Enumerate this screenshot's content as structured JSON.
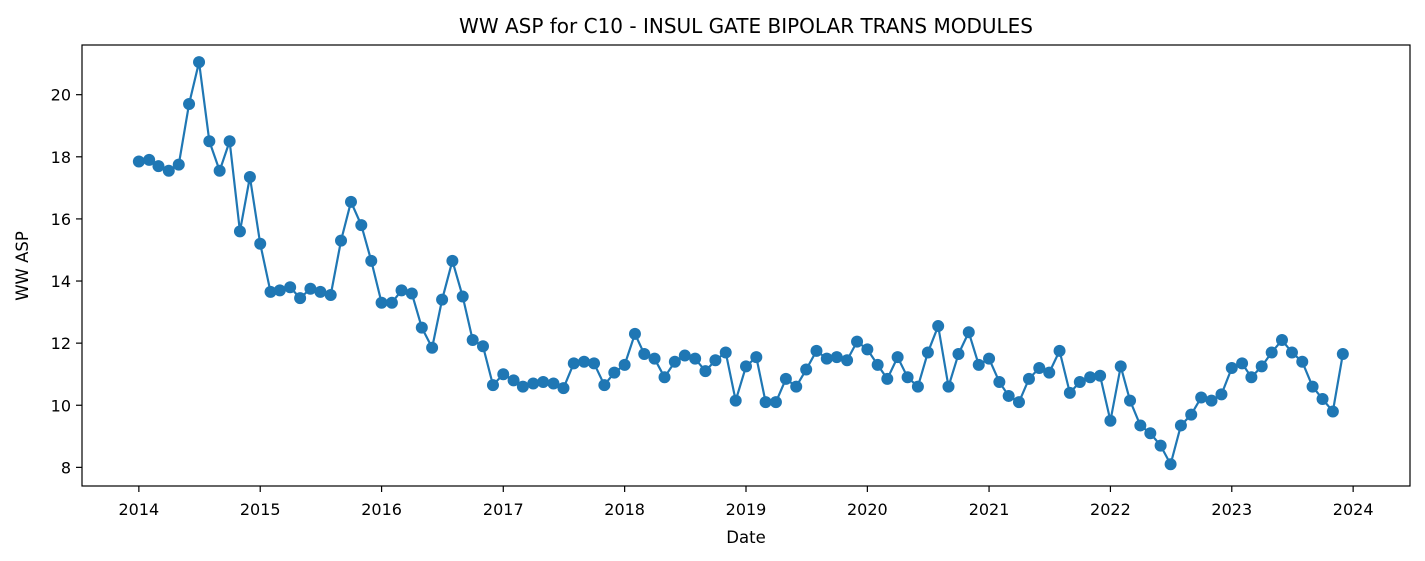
{
  "chart_data": {
    "type": "line",
    "title": "WW ASP for C10 - INSUL GATE BIPOLAR TRANS MODULES",
    "xlabel": "Date",
    "ylabel": "WW ASP",
    "x_ticks": [
      "2014",
      "2015",
      "2016",
      "2017",
      "2018",
      "2019",
      "2020",
      "2021",
      "2022",
      "2023",
      "2024"
    ],
    "y_ticks": [
      "8",
      "10",
      "12",
      "14",
      "16",
      "18",
      "20"
    ],
    "xlim": [
      "2013-07-14",
      "2024-06-20"
    ],
    "ylim": [
      7.4,
      21.6
    ],
    "grid": false,
    "marker": "circle",
    "color": "#1f77b4",
    "series": [
      {
        "x": [
          "2014-01",
          "2014-02",
          "2014-03",
          "2014-04",
          "2014-05",
          "2014-06",
          "2014-07",
          "2014-08",
          "2014-09",
          "2014-10",
          "2014-11",
          "2014-12",
          "2015-01",
          "2015-02",
          "2015-03",
          "2015-04",
          "2015-05",
          "2015-06",
          "2015-07",
          "2015-08",
          "2015-09",
          "2015-10",
          "2015-11",
          "2015-12",
          "2016-01",
          "2016-02",
          "2016-03",
          "2016-04",
          "2016-05",
          "2016-06",
          "2016-07",
          "2016-08",
          "2016-09",
          "2016-10",
          "2016-11",
          "2016-12",
          "2017-01",
          "2017-02",
          "2017-03",
          "2017-04",
          "2017-05",
          "2017-06",
          "2017-07",
          "2017-08",
          "2017-09",
          "2017-10",
          "2017-11",
          "2017-12",
          "2018-01",
          "2018-02",
          "2018-03",
          "2018-04",
          "2018-05",
          "2018-06",
          "2018-07",
          "2018-08",
          "2018-09",
          "2018-10",
          "2018-11",
          "2018-12",
          "2019-01",
          "2019-02",
          "2019-03",
          "2019-04",
          "2019-05",
          "2019-06",
          "2019-07",
          "2019-08",
          "2019-09",
          "2019-10",
          "2019-11",
          "2019-12",
          "2020-01",
          "2020-02",
          "2020-03",
          "2020-04",
          "2020-05",
          "2020-06",
          "2020-07",
          "2020-08",
          "2020-09",
          "2020-10",
          "2020-11",
          "2020-12",
          "2021-01",
          "2021-02",
          "2021-03",
          "2021-04",
          "2021-05",
          "2021-06",
          "2021-07",
          "2021-08",
          "2021-09",
          "2021-10",
          "2021-11",
          "2021-12",
          "2022-01",
          "2022-02",
          "2022-03",
          "2022-04",
          "2022-05",
          "2022-06",
          "2022-07",
          "2022-08",
          "2022-09",
          "2022-10",
          "2022-11",
          "2022-12",
          "2023-01",
          "2023-02",
          "2023-03",
          "2023-04",
          "2023-05",
          "2023-06",
          "2023-07",
          "2023-08",
          "2023-09",
          "2023-10",
          "2023-11",
          "2023-12"
        ],
        "y": [
          17.85,
          17.9,
          17.7,
          17.55,
          17.75,
          19.7,
          21.05,
          18.5,
          17.55,
          18.5,
          15.6,
          17.35,
          15.2,
          13.65,
          13.7,
          13.8,
          13.45,
          13.75,
          13.65,
          13.55,
          15.3,
          16.55,
          15.8,
          14.65,
          13.3,
          13.3,
          13.7,
          13.6,
          12.5,
          11.85,
          13.4,
          14.65,
          13.5,
          12.1,
          11.9,
          10.65,
          11.0,
          10.8,
          10.6,
          10.7,
          10.75,
          10.7,
          10.55,
          11.35,
          11.4,
          11.35,
          10.65,
          11.05,
          11.3,
          12.3,
          11.65,
          11.5,
          10.9,
          11.4,
          11.6,
          11.5,
          11.1,
          11.45,
          11.7,
          10.15,
          11.25,
          11.55,
          10.1,
          10.1,
          10.85,
          10.6,
          11.15,
          11.75,
          11.5,
          11.55,
          11.45,
          12.05,
          11.8,
          11.3,
          10.85,
          11.55,
          10.9,
          10.6,
          11.7,
          12.55,
          10.6,
          11.65,
          12.35,
          11.3,
          11.5,
          10.75,
          10.3,
          10.1,
          10.85,
          11.2,
          11.05,
          11.75,
          10.4,
          10.75,
          10.9,
          10.95,
          9.5,
          11.25,
          10.15,
          9.35,
          9.1,
          8.7,
          8.1,
          9.35,
          9.7,
          10.25,
          10.15,
          10.35,
          11.2,
          11.35,
          10.9,
          11.25,
          11.7,
          12.1,
          11.7,
          11.4,
          10.6,
          10.2,
          9.8,
          11.65
        ]
      }
    ]
  }
}
